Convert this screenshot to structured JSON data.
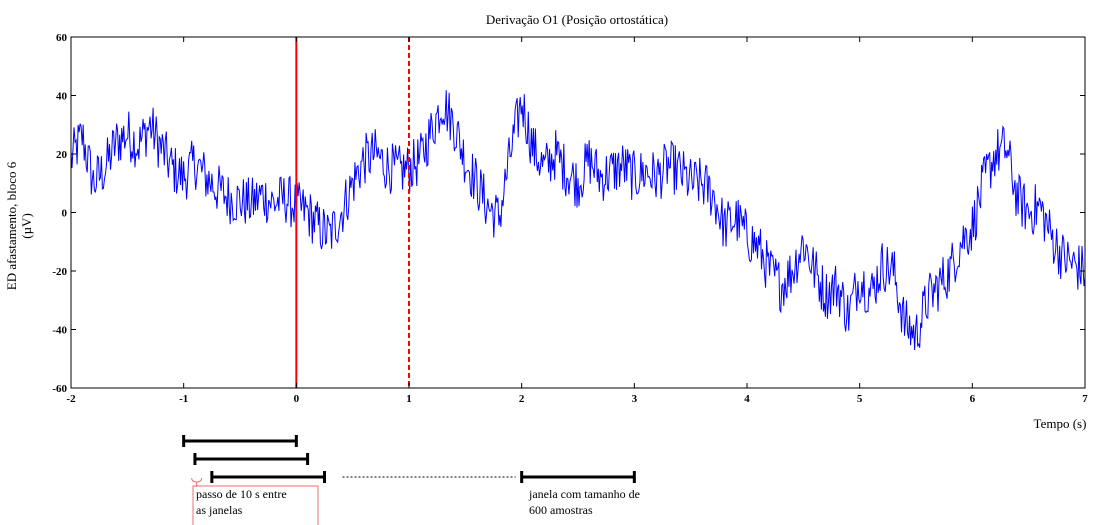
{
  "chart_data": {
    "type": "line",
    "title": "Derivação O1 (Posição ortostática)",
    "xlabel": "Tempo (s)",
    "ylabel_line1": "ED afastamento, bloco 6",
    "ylabel_line2": "(µV)",
    "xlim": [
      -2,
      7
    ],
    "ylim": [
      -60,
      60
    ],
    "x_ticks": [
      -2,
      -1,
      0,
      1,
      2,
      3,
      4,
      5,
      6,
      7
    ],
    "y_ticks": [
      -60,
      -40,
      -20,
      0,
      20,
      40,
      60
    ],
    "grid": false,
    "colors": {
      "signal": "#0000ff",
      "markers": "#ff0000",
      "annotation_box": "#e87070"
    },
    "series": [
      {
        "color": "#0000ff",
        "x": [
          -2.0,
          -1.9,
          -1.8,
          -1.7,
          -1.6,
          -1.5,
          -1.4,
          -1.3,
          -1.2,
          -1.1,
          -1.0,
          -0.9,
          -0.8,
          -0.7,
          -0.6,
          -0.5,
          -0.4,
          -0.3,
          -0.2,
          -0.1,
          0.0,
          0.1,
          0.2,
          0.3,
          0.4,
          0.5,
          0.6,
          0.7,
          0.8,
          0.9,
          1.0,
          1.1,
          1.2,
          1.3,
          1.4,
          1.5,
          1.6,
          1.7,
          1.8,
          1.9,
          2.0,
          2.1,
          2.2,
          2.3,
          2.4,
          2.5,
          2.6,
          2.7,
          2.8,
          2.9,
          3.0,
          3.1,
          3.2,
          3.3,
          3.4,
          3.5,
          3.6,
          3.7,
          3.8,
          3.9,
          4.0,
          4.1,
          4.2,
          4.3,
          4.4,
          4.5,
          4.6,
          4.7,
          4.8,
          4.9,
          5.0,
          5.1,
          5.2,
          5.3,
          5.4,
          5.5,
          5.6,
          5.7,
          5.8,
          5.9,
          6.0,
          6.1,
          6.2,
          6.3,
          6.4,
          6.5,
          6.6,
          6.7,
          6.8,
          6.9,
          7.0
        ],
        "y": [
          18,
          26,
          10,
          15,
          24,
          27,
          23,
          30,
          22,
          15,
          12,
          17,
          12,
          8,
          5,
          4,
          3,
          6,
          3,
          5,
          2,
          0,
          -5,
          -8,
          0,
          10,
          18,
          20,
          16,
          14,
          15,
          18,
          28,
          38,
          30,
          18,
          10,
          2,
          -2,
          20,
          38,
          22,
          15,
          20,
          14,
          10,
          18,
          12,
          14,
          16,
          12,
          14,
          12,
          16,
          14,
          10,
          10,
          6,
          -5,
          -2,
          -8,
          -12,
          -20,
          -25,
          -20,
          -10,
          -20,
          -28,
          -25,
          -35,
          -22,
          -28,
          -18,
          -20,
          -38,
          -42,
          -30,
          -25,
          -20,
          -10,
          -5,
          10,
          20,
          22,
          5,
          0,
          2,
          -8,
          -15,
          -18,
          -20
        ]
      }
    ],
    "marker_lines": [
      {
        "x": 0,
        "style": "solid"
      },
      {
        "x": 1,
        "style": "dashed"
      }
    ],
    "window_bars": [
      {
        "start": -1.0,
        "end": 0.0
      },
      {
        "start": -0.9,
        "end": 0.1
      },
      {
        "start": -0.75,
        "end": 0.25
      },
      {
        "start": 2.0,
        "end": 3.0
      }
    ],
    "annotations": {
      "step_line1": "passo de 10 s entre",
      "step_line2": "as janelas",
      "window_line1": "janela com tamanho de",
      "window_line2": "600 amostras"
    }
  }
}
